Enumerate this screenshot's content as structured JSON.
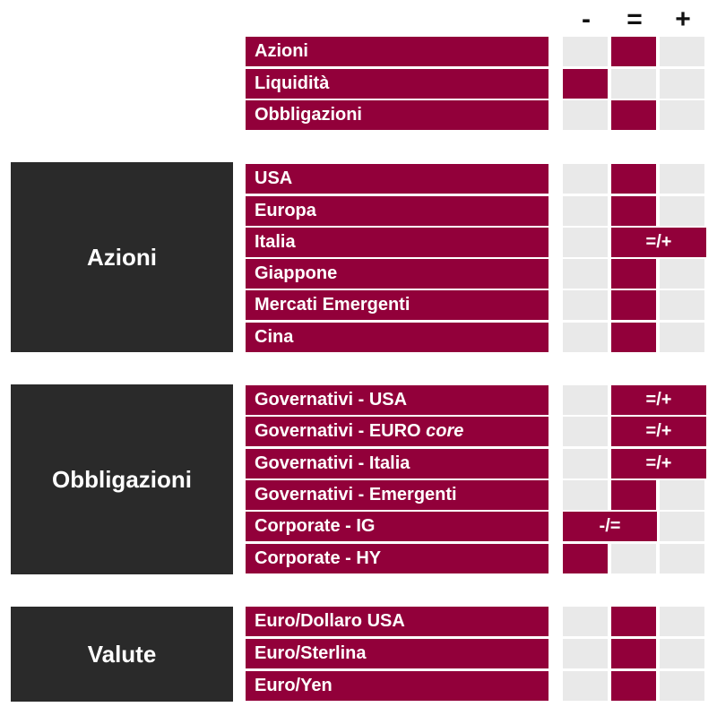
{
  "columns": [
    "-",
    "=",
    "+"
  ],
  "colors": {
    "accent": "#92003a",
    "empty": "#e9e9e9",
    "group": "#2a2a2a"
  },
  "sections": [
    {
      "title": "",
      "rows": [
        {
          "label": "Azioni",
          "level": "="
        },
        {
          "label": "Liquidità",
          "level": "-"
        },
        {
          "label": "Obbligazioni",
          "level": "="
        }
      ]
    },
    {
      "title": "Azioni",
      "rows": [
        {
          "label": "USA",
          "level": "="
        },
        {
          "label": "Europa",
          "level": "="
        },
        {
          "label": "Italia",
          "level": "=/+",
          "range_label": "=/+"
        },
        {
          "label": "Giappone",
          "level": "="
        },
        {
          "label": "Mercati Emergenti",
          "level": "="
        },
        {
          "label": "Cina",
          "level": "="
        }
      ]
    },
    {
      "title": "Obbligazioni",
      "rows": [
        {
          "label": "Governativi - USA",
          "level": "=/+",
          "range_label": "=/+"
        },
        {
          "label": "Governativi - EURO",
          "label_italic": "core",
          "level": "=/+",
          "range_label": "=/+"
        },
        {
          "label": "Governativi - Italia",
          "level": "=/+",
          "range_label": "=/+"
        },
        {
          "label": "Governativi - Emergenti",
          "level": "="
        },
        {
          "label": "Corporate - IG",
          "level": "-/=",
          "range_label": "-/="
        },
        {
          "label": "Corporate - HY",
          "level": "-"
        }
      ]
    },
    {
      "title": "Valute",
      "rows": [
        {
          "label": "Euro/Dollaro USA",
          "level": "="
        },
        {
          "label": "Euro/Sterlina",
          "level": "="
        },
        {
          "label": "Euro/Yen",
          "level": "="
        }
      ]
    }
  ]
}
